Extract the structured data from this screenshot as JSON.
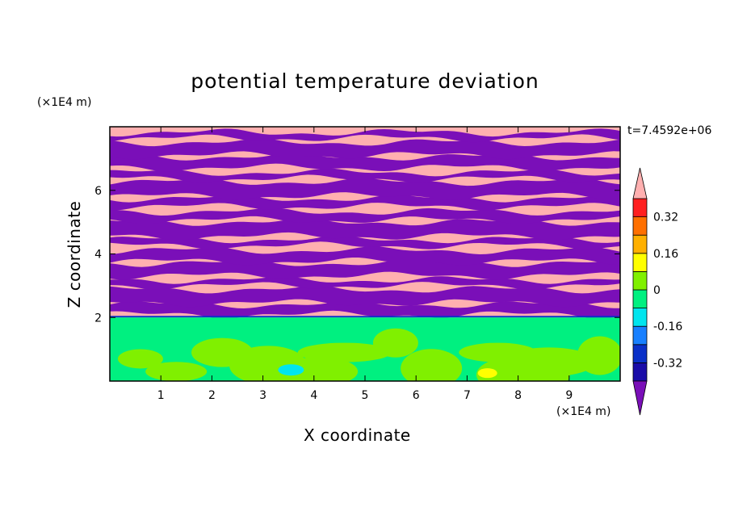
{
  "chart_data": {
    "type": "heatmap",
    "title": "potential temperature deviation",
    "xlabel": "X coordinate",
    "ylabel": "Z coordinate",
    "x_unit": "(×1E4 m)",
    "y_unit": "(×1E4 m)",
    "time_label": "t=7.4592e+06",
    "xlim": [
      0,
      10
    ],
    "ylim": [
      0,
      8
    ],
    "x_ticks": [
      "1",
      "2",
      "3",
      "4",
      "5",
      "6",
      "7",
      "8",
      "9"
    ],
    "y_ticks": [
      "2",
      "4",
      "6"
    ],
    "colorbar": {
      "levels": [
        -0.48,
        -0.4,
        -0.32,
        -0.24,
        -0.16,
        -0.08,
        0,
        0.08,
        0.16,
        0.24,
        0.32,
        0.4,
        0.48
      ],
      "colors": [
        "#7a0fb8",
        "#1a0ca8",
        "#0a30c8",
        "#1880ff",
        "#00e5ee",
        "#00f080",
        "#80f000",
        "#ffff00",
        "#ffb000",
        "#ff7000",
        "#ff2020",
        "#ffb0b0"
      ],
      "tick_labels": [
        "-0.32",
        "-0.16",
        "0",
        "0.16",
        "0.32"
      ],
      "extend": "both"
    },
    "regions": [
      {
        "z_range": [
          0,
          2.0
        ],
        "dominant_value_range": [
          0,
          0.08
        ],
        "note_values": "green / light green mixed layer"
      },
      {
        "z_range": [
          2.0,
          8.0
        ],
        "alternating_bands": [
          ">0.40",
          "<-0.40"
        ],
        "band_count_approx": 14
      }
    ]
  }
}
